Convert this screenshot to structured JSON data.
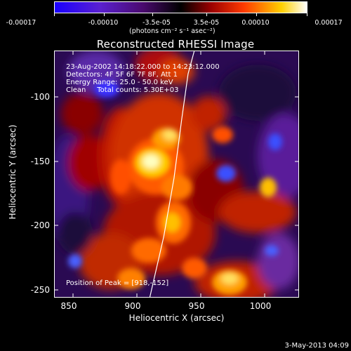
{
  "colorbar": {
    "tick_labels": [
      "-0.00017",
      "-0.00010",
      "-3.5e-05",
      "3.5e-05",
      "0.00010",
      "0.00017"
    ],
    "units": "(photons cm⁻² s⁻¹ asec⁻²)",
    "colors": [
      "#0000ff",
      "#8a2be2",
      "#6a0dad",
      "#000000",
      "#8b0000",
      "#ff4500",
      "#ffd700",
      "#ffffff"
    ]
  },
  "plot": {
    "title": "Reconstructed RHESSI Image",
    "xlabel": "Heliocentric X (arcsec)",
    "ylabel": "Heliocentric Y (arcsec)",
    "x_ticks": [
      "850",
      "900",
      "950",
      "1000"
    ],
    "y_ticks": [
      "-100",
      "-150",
      "-200",
      "-250"
    ],
    "annotations": [
      "23-Aug-2002 14:18:22.000 to 14:23:12.000",
      "Detectors: 4F 5F 6F 7F 8F, Att 1",
      "Energy Range: 25.0 - 50.0 keV",
      "Clean     Total counts: 5.30E+03"
    ],
    "peak_text": "Position of Peak = [918,-152]"
  },
  "footer": {
    "date": "3-May-2013 04:09"
  },
  "chart_data": {
    "type": "heatmap",
    "title": "Reconstructed RHESSI Image",
    "xlabel": "Heliocentric X (arcsec)",
    "ylabel": "Heliocentric Y (arcsec)",
    "xlim": [
      838,
      1030
    ],
    "ylim": [
      -257,
      -67
    ],
    "colorbar_range": [
      -0.00017,
      0.00017
    ],
    "colorbar_units": "photons cm^-2 s^-1 asec^-2",
    "peak": [
      918,
      -152
    ],
    "limb_curve_x": [
      913,
      924,
      932,
      938,
      943,
      948
    ],
    "limb_curve_y": [
      -257,
      -210,
      -165,
      -120,
      -85,
      -67
    ]
  }
}
